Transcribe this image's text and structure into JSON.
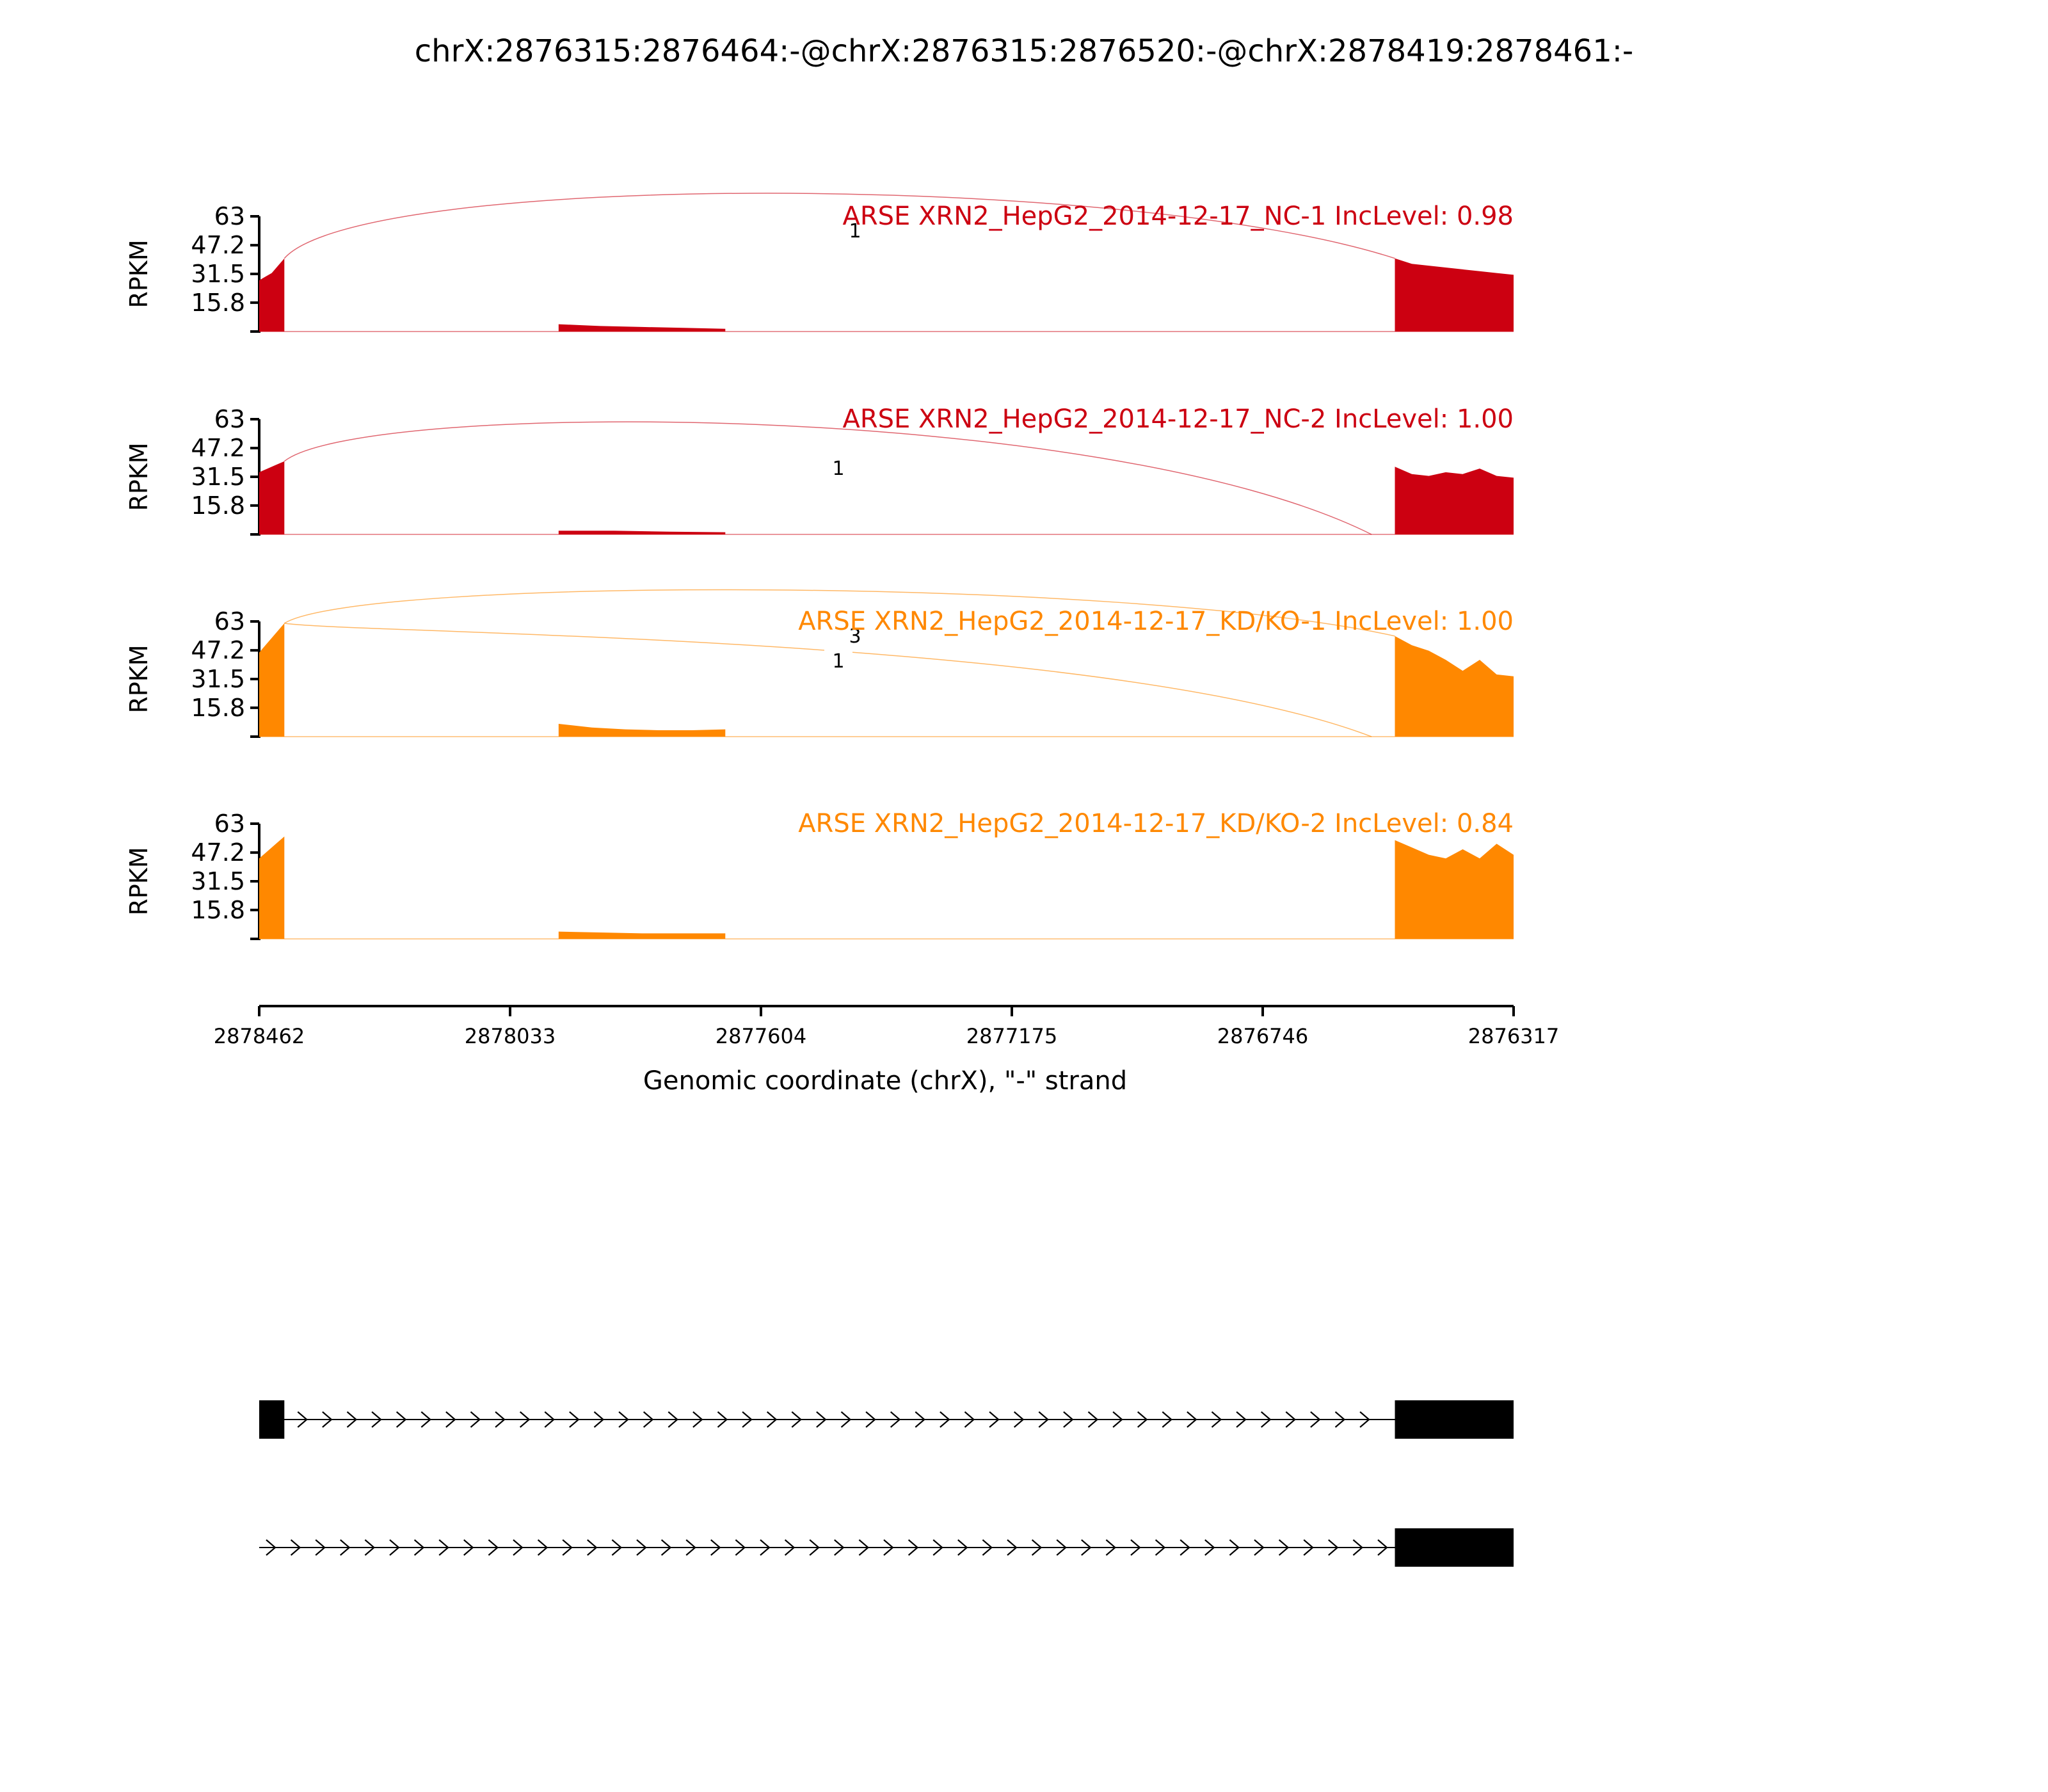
{
  "chart_data": {
    "type": "area",
    "title": "chrX:2876315:2876464:-@chrX:2876315:2876520:-@chrX:2878419:2878461:-",
    "xlabel": "Genomic coordinate (chrX), \"-\" strand",
    "ylabel": "RPKM",
    "x_ticks": [
      "2878462",
      "2878033",
      "2877604",
      "2877175",
      "2876746",
      "2876317"
    ],
    "x_range": [
      2878462,
      2876317
    ],
    "y_ticks": [
      "63",
      "47.2",
      "31.5",
      "15.8"
    ],
    "ylim": [
      0,
      63
    ],
    "tracks": [
      {
        "name": "ARSE XRN2_HepG2_2014-12-17_NC-1 IncLevel: 0.98",
        "color": "#cc0011",
        "coverage": [
          {
            "start": 2878462,
            "end": 2878419,
            "values": [
              28,
              30,
              32,
              36,
              40
            ]
          },
          {
            "start": 2877950,
            "end": 2877665,
            "values": [
              4,
              3,
              2.5,
              2,
              1.5
            ]
          },
          {
            "start": 2876520,
            "end": 2876317,
            "values": [
              40,
              37,
              36,
              35,
              34,
              33,
              32,
              31
            ]
          }
        ],
        "junctions": [
          {
            "from": 2878419,
            "to": 2876520,
            "count": "1",
            "side": "above"
          }
        ]
      },
      {
        "name": "ARSE XRN2_HepG2_2014-12-17_NC-2 IncLevel: 1.00",
        "color": "#cc0011",
        "coverage": [
          {
            "start": 2878462,
            "end": 2878419,
            "values": [
              34,
              36,
              38,
              40
            ]
          },
          {
            "start": 2877950,
            "end": 2877665,
            "values": [
              2,
              2,
              1.5,
              1.2
            ]
          },
          {
            "start": 2876520,
            "end": 2876317,
            "values": [
              37,
              33,
              32,
              34,
              33,
              36,
              32,
              31
            ]
          }
        ],
        "junctions": [
          {
            "from": 2878419,
            "to": 2876560,
            "count": "1",
            "side": "above"
          }
        ]
      },
      {
        "name": "ARSE XRN2_HepG2_2014-12-17_KD/KO-1 IncLevel: 1.00",
        "color": "#ff8800",
        "coverage": [
          {
            "start": 2878462,
            "end": 2878419,
            "values": [
              46,
              50,
              54,
              58,
              62
            ]
          },
          {
            "start": 2877950,
            "end": 2877665,
            "values": [
              7,
              5,
              4,
              3.5,
              3.5,
              4
            ]
          },
          {
            "start": 2876520,
            "end": 2876317,
            "values": [
              55,
              50,
              47,
              42,
              36,
              42,
              34,
              33
            ]
          }
        ],
        "junctions": [
          {
            "from": 2878419,
            "to": 2876520,
            "count": "3",
            "side": "above"
          },
          {
            "from": 2878419,
            "to": 2876560,
            "count": "1",
            "side": "below"
          }
        ]
      },
      {
        "name": "ARSE XRN2_HepG2_2014-12-17_KD/KO-2 IncLevel: 0.84",
        "color": "#ff8800",
        "coverage": [
          {
            "start": 2878462,
            "end": 2878419,
            "values": [
              44,
              48,
              52,
              56
            ]
          },
          {
            "start": 2877950,
            "end": 2877665,
            "values": [
              4,
              3.5,
              3,
              3,
              3
            ]
          },
          {
            "start": 2876520,
            "end": 2876317,
            "values": [
              54,
              50,
              46,
              44,
              49,
              44,
              52,
              46
            ]
          }
        ],
        "junctions": []
      }
    ],
    "transcripts": [
      {
        "exons": [
          [
            2878462,
            2878419
          ],
          [
            2876520,
            2876317
          ]
        ]
      },
      {
        "exons": [
          [
            2876520,
            2876317
          ]
        ]
      }
    ]
  }
}
